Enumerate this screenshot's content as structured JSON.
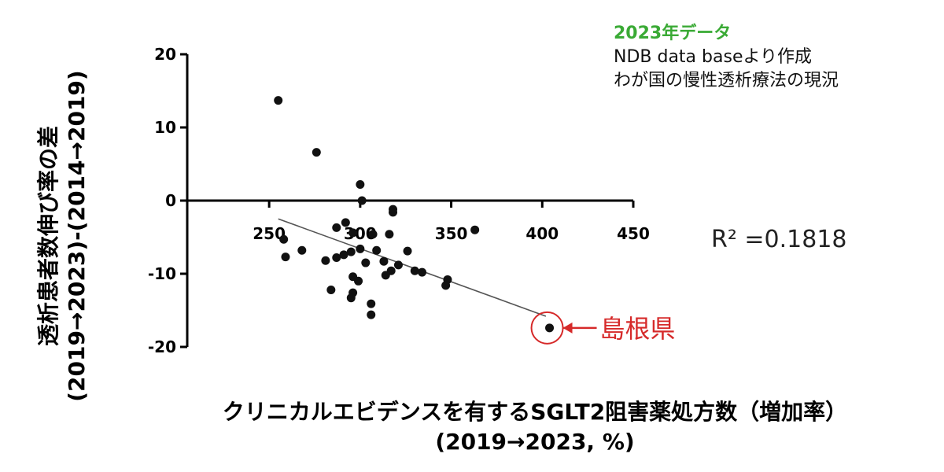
{
  "chart_data": {
    "type": "scatter",
    "ylabel_lines": [
      "透析患者数伸び率の差",
      "(2019→2023)-(2014→2019)"
    ],
    "xlabel_lines": [
      "クリニカルエビデンスを有するSGLT2阻害薬処方数（増加率）",
      "(2019→2023, %)"
    ],
    "x_ticks": [
      250,
      300,
      350,
      400,
      450
    ],
    "y_ticks": [
      20,
      10,
      0,
      -10,
      -20
    ],
    "xlim": [
      205,
      450
    ],
    "ylim": [
      -20,
      20
    ],
    "grid": false,
    "r_squared_label": "R² =0.1818",
    "annotation_lines": [
      "2023年データ",
      "NDB data baseより作成",
      "わが国の慢性透析療法の現況"
    ],
    "callout": {
      "label": "島根県",
      "x": 404,
      "y": -17.4
    },
    "trendline": {
      "x": [
        255,
        402
      ],
      "y": [
        -2.5,
        -15.8
      ]
    },
    "points": [
      {
        "x": 255,
        "y": 13.7
      },
      {
        "x": 276,
        "y": 6.6
      },
      {
        "x": 300,
        "y": 2.2
      },
      {
        "x": 301,
        "y": 0
      },
      {
        "x": 318,
        "y": -1.2
      },
      {
        "x": 318,
        "y": -1.6
      },
      {
        "x": 363,
        "y": -4.0
      },
      {
        "x": 258,
        "y": -5.3
      },
      {
        "x": 259,
        "y": -7.7
      },
      {
        "x": 268,
        "y": -6.8
      },
      {
        "x": 292,
        "y": -3.0
      },
      {
        "x": 287,
        "y": -3.7
      },
      {
        "x": 296,
        "y": -4.4
      },
      {
        "x": 307,
        "y": -4.6
      },
      {
        "x": 316,
        "y": -4.6
      },
      {
        "x": 281,
        "y": -8.2
      },
      {
        "x": 287,
        "y": -7.8
      },
      {
        "x": 291,
        "y": -7.4
      },
      {
        "x": 295,
        "y": -7.0
      },
      {
        "x": 300,
        "y": -6.6
      },
      {
        "x": 303,
        "y": -8.5
      },
      {
        "x": 309,
        "y": -6.8
      },
      {
        "x": 313,
        "y": -8.3
      },
      {
        "x": 317,
        "y": -9.6
      },
      {
        "x": 321,
        "y": -8.8
      },
      {
        "x": 326,
        "y": -6.9
      },
      {
        "x": 330,
        "y": -9.6
      },
      {
        "x": 334,
        "y": -9.8
      },
      {
        "x": 314,
        "y": -10.2
      },
      {
        "x": 296,
        "y": -10.4
      },
      {
        "x": 299,
        "y": -11.0
      },
      {
        "x": 284,
        "y": -12.2
      },
      {
        "x": 296,
        "y": -12.6
      },
      {
        "x": 295,
        "y": -13.3
      },
      {
        "x": 306,
        "y": -14.1
      },
      {
        "x": 306,
        "y": -15.6
      },
      {
        "x": 348,
        "y": -10.8
      },
      {
        "x": 347,
        "y": -11.6
      },
      {
        "x": 404,
        "y": -17.4
      }
    ]
  }
}
